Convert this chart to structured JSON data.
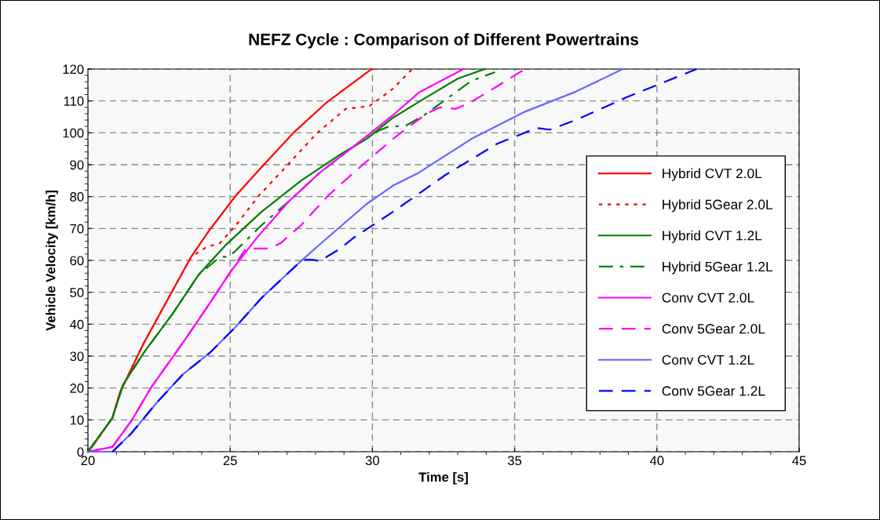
{
  "chart_data": {
    "type": "line",
    "title": "NEFZ Cycle : Comparison of Different Powertrains",
    "xlabel": "Time [s]",
    "ylabel": "Vehicle Velocity [km/h]",
    "xlim": [
      20,
      45
    ],
    "xticks": [
      20,
      25,
      30,
      35,
      40,
      45
    ],
    "ylim": [
      0,
      120
    ],
    "yticks": [
      0,
      10,
      20,
      30,
      40,
      50,
      60,
      70,
      80,
      90,
      100,
      110,
      120
    ],
    "grid": true,
    "legend": "right",
    "marker": "none",
    "series": [
      {
        "name": "Hybrid CVT 2.0L",
        "color": "#ff0000",
        "line_style": "solid",
        "x": [
          20,
          20.14,
          20.86,
          21.13,
          21.96,
          22.98,
          23.62,
          24.28,
          25.19,
          26.1,
          27.2,
          28.4,
          29.97
        ],
        "values": [
          0,
          1.5,
          10.6,
          18.7,
          34,
          50.6,
          61,
          69.6,
          80.2,
          89.2,
          99.8,
          109.6,
          120
        ]
      },
      {
        "name": "Hybrid 5Gear 2.0L",
        "color": "#ff0000",
        "line_style": "dotted",
        "x": [
          20,
          20.14,
          20.86,
          21.13,
          21.96,
          22.98,
          23.62,
          24.17,
          24.64,
          25.2,
          26.0,
          26.85,
          28.04,
          29.06,
          29.9,
          30.72,
          31.4
        ],
        "values": [
          0,
          1.5,
          10.6,
          18.7,
          34,
          50.6,
          61,
          64.2,
          65.4,
          71,
          80.2,
          88.3,
          99.8,
          107.5,
          108.4,
          113.8,
          120
        ]
      },
      {
        "name": "Hybrid CVT 1.2L",
        "color": "#008000",
        "line_style": "solid",
        "x": [
          20,
          20.86,
          21.24,
          21.96,
          22.98,
          23.9,
          24.83,
          26.1,
          27.49,
          28.87,
          29.8,
          30.72,
          31.63,
          33.0,
          33.95
        ],
        "values": [
          0,
          10.6,
          21.1,
          31,
          43.3,
          55.6,
          64.7,
          75.2,
          85,
          93.2,
          98.1,
          104.7,
          109.7,
          117,
          120
        ]
      },
      {
        "name": "Hybrid 5Gear 1.2L",
        "color": "#008000",
        "line_style": "dashdot",
        "x": [
          20,
          20.86,
          21.24,
          21.96,
          22.98,
          23.9,
          24.64,
          24.92,
          25.19,
          26.1,
          27.05,
          28.15,
          29.34,
          29.8,
          30.53,
          31.18,
          31.82,
          32.57,
          33.48,
          34.31
        ],
        "values": [
          0,
          10.6,
          21.1,
          31,
          43.3,
          55.6,
          61,
          61.2,
          63,
          71,
          78.4,
          87.5,
          95.7,
          99,
          101.8,
          102.3,
          105.5,
          110.4,
          116.3,
          119
        ]
      },
      {
        "name": "Conv CVT 2.0L",
        "color": "#ff00ff",
        "line_style": "solid",
        "x": [
          20,
          20.86,
          21.52,
          22.24,
          23.34,
          24.28,
          25.0,
          25.94,
          27.05,
          28.15,
          29.34,
          30.72,
          31.63,
          33.2
        ],
        "values": [
          0,
          1.5,
          9.6,
          20.4,
          34.2,
          46.5,
          56.3,
          67.1,
          78.4,
          87.5,
          95.7,
          105.5,
          112.6,
          120
        ]
      },
      {
        "name": "Conv 5Gear 2.0L",
        "color": "#ff00ff",
        "line_style": "dashed",
        "x": [
          20,
          20.86,
          21.52,
          22.24,
          23.34,
          24.28,
          25.0,
          25.55,
          26.0,
          26.4,
          26.77,
          27.49,
          28.43,
          29.34,
          30.72,
          31.9,
          32.38,
          32.93,
          33.48,
          34.39,
          35.14,
          35.4
        ],
        "values": [
          0,
          1.5,
          9.6,
          20.4,
          34.2,
          46.5,
          56.3,
          63.7,
          63.7,
          63.7,
          65.4,
          71,
          80.2,
          87.5,
          98.1,
          106,
          108,
          107.5,
          109.7,
          114.6,
          118.8,
          120
        ]
      },
      {
        "name": "Conv CVT 1.2L",
        "color": "#6666ff",
        "line_style": "solid",
        "x": [
          20,
          20.86,
          21.52,
          22.43,
          23.34,
          24.28,
          25.19,
          26.1,
          27.49,
          28.2,
          29.8,
          30.72,
          31.63,
          33.48,
          35.33,
          37.15,
          38.8
        ],
        "values": [
          0,
          0,
          5.7,
          15.5,
          24.3,
          31,
          39.1,
          48.2,
          59.8,
          65.4,
          77.7,
          83.4,
          87.5,
          98.1,
          106.5,
          112.9,
          120
        ]
      },
      {
        "name": "Conv 5Gear 1.2L",
        "color": "#0000ff",
        "line_style": "dashed",
        "x": [
          20.86,
          21.52,
          22.43,
          23.34,
          24.28,
          25.19,
          26.1,
          27.49,
          27.68,
          27.87,
          28.15,
          28.87,
          29.34,
          30.72,
          32.57,
          34.39,
          35.77,
          36.24,
          37.15,
          39.0,
          39.9,
          41.4
        ],
        "values": [
          0,
          5.7,
          15.5,
          24.3,
          31,
          39.1,
          48.2,
          59.8,
          60.2,
          60.2,
          59.8,
          63.7,
          67.1,
          75.2,
          86.8,
          96.6,
          101.5,
          101,
          104,
          111.4,
          114.6,
          120
        ]
      }
    ]
  }
}
